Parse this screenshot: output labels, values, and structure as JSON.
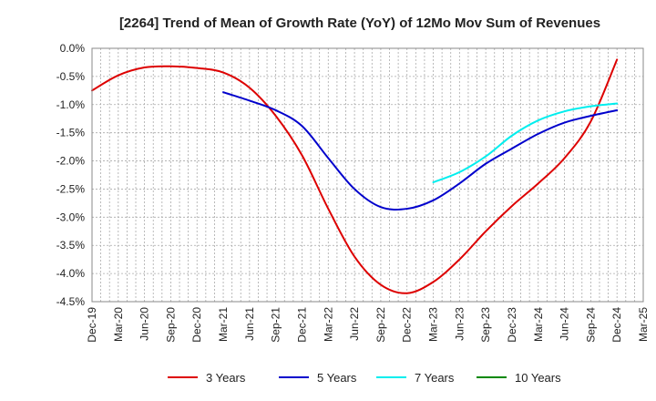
{
  "chart_data": {
    "type": "line",
    "title": "[2264]  Trend of Mean of Growth Rate (YoY) of 12Mo Mov Sum of Revenues",
    "xlabel": "",
    "ylabel": "",
    "ylim": [
      -4.5,
      0.0
    ],
    "y_ticks": [
      "0.0%",
      "-0.5%",
      "-1.0%",
      "-1.5%",
      "-2.0%",
      "-2.5%",
      "-3.0%",
      "-3.5%",
      "-4.0%",
      "-4.5%"
    ],
    "y_tick_values": [
      0.0,
      -0.5,
      -1.0,
      -1.5,
      -2.0,
      -2.5,
      -3.0,
      -3.5,
      -4.0,
      -4.5
    ],
    "categories": [
      "Dec-19",
      "Mar-20",
      "Jun-20",
      "Sep-20",
      "Dec-20",
      "Mar-21",
      "Jun-21",
      "Sep-21",
      "Dec-21",
      "Mar-22",
      "Jun-22",
      "Sep-22",
      "Dec-22",
      "Mar-23",
      "Jun-23",
      "Sep-23",
      "Dec-23",
      "Mar-24",
      "Jun-24",
      "Sep-24",
      "Dec-24",
      "Mar-25"
    ],
    "grid": true,
    "legend_position": "bottom",
    "series": [
      {
        "name": "3 Years",
        "color": "#dd0000",
        "values": [
          -0.75,
          -0.48,
          -0.34,
          -0.32,
          -0.35,
          -0.43,
          -0.7,
          -1.2,
          -1.9,
          -2.85,
          -3.7,
          -4.2,
          -4.35,
          -4.15,
          -3.75,
          -3.25,
          -2.8,
          -2.4,
          -1.95,
          -1.3,
          -0.2,
          null
        ]
      },
      {
        "name": "5 Years",
        "color": "#0000cc",
        "values": [
          null,
          null,
          null,
          null,
          null,
          -0.78,
          -0.93,
          -1.1,
          -1.38,
          -1.95,
          -2.5,
          -2.82,
          -2.85,
          -2.7,
          -2.4,
          -2.05,
          -1.78,
          -1.52,
          -1.32,
          -1.2,
          -1.1,
          null
        ]
      },
      {
        "name": "7 Years",
        "color": "#00eeee",
        "values": [
          null,
          null,
          null,
          null,
          null,
          null,
          null,
          null,
          null,
          null,
          null,
          null,
          null,
          -2.38,
          -2.2,
          -1.92,
          -1.55,
          -1.28,
          -1.12,
          -1.03,
          -0.98,
          null
        ]
      },
      {
        "name": "10 Years",
        "color": "#008800",
        "values": [
          null,
          null,
          null,
          null,
          null,
          null,
          null,
          null,
          null,
          null,
          null,
          null,
          null,
          null,
          null,
          null,
          null,
          null,
          null,
          null,
          null,
          null
        ]
      }
    ]
  }
}
